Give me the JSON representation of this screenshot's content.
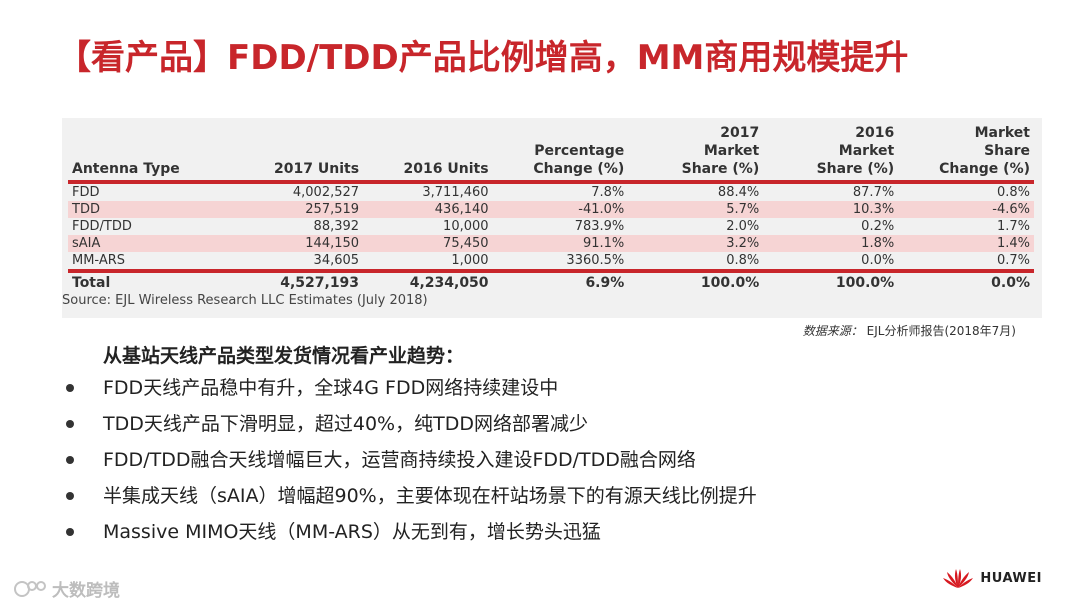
{
  "title": "【看产品】FDD/TDD产品比例增高，MM商用规模提升",
  "table": {
    "headers": [
      "Antenna Type",
      "2017 Units",
      "2016 Units",
      "Percentage Change (%)",
      "2017 Market Share (%)",
      "2016 Market Share (%)",
      "Market Share Change (%)"
    ],
    "rows": [
      [
        "FDD",
        "4,002,527",
        "3,711,460",
        "7.8%",
        "88.4%",
        "87.7%",
        "0.8%"
      ],
      [
        "TDD",
        "257,519",
        "436,140",
        "-41.0%",
        "5.7%",
        "10.3%",
        "-4.6%"
      ],
      [
        "FDD/TDD",
        "88,392",
        "10,000",
        "783.9%",
        "2.0%",
        "0.2%",
        "1.7%"
      ],
      [
        "sAIA",
        "144,150",
        "75,450",
        "91.1%",
        "3.2%",
        "1.8%",
        "1.4%"
      ],
      [
        "MM-ARS",
        "34,605",
        "1,000",
        "3360.5%",
        "0.8%",
        "0.0%",
        "0.7%"
      ]
    ],
    "total": [
      "Total",
      "4,527,193",
      "4,234,050",
      "6.9%",
      "100.0%",
      "100.0%",
      "0.0%"
    ]
  },
  "source": "Source: EJL Wireless Research LLC Estimates (July 2018)",
  "reference": {
    "label": "数据来源：",
    "value": "EJL分析师报告(2018年7月)"
  },
  "subtitle": "从基站天线产品类型发货情况看产业趋势：",
  "bullets": [
    "FDD天线产品稳中有升，全球4G FDD网络持续建设中",
    "TDD天线产品下滑明显，超过40%，纯TDD网络部署减少",
    "FDD/TDD融合天线增幅巨大，运营商持续投入建设FDD/TDD融合网络",
    "半集成天线（sAIA）增幅超90%，主要体现在杆站场景下的有源天线比例提升",
    "Massive MIMO天线（MM-ARS）从无到有，增长势头迅猛"
  ],
  "watermark": "大数跨境",
  "brand": "HUAWEI",
  "colors": {
    "accent": "#c8262b",
    "row_highlight": "#f6d4d4"
  }
}
